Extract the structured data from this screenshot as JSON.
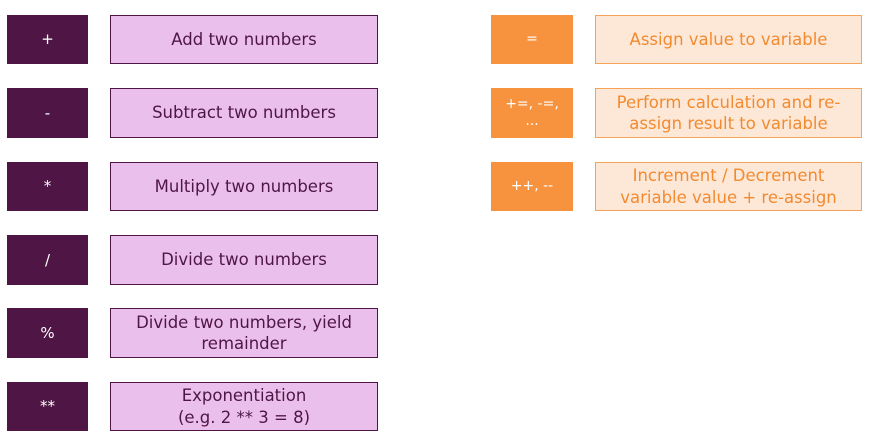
{
  "arithmetic_operators": [
    {
      "symbol": "+",
      "description": "Add two numbers"
    },
    {
      "symbol": "-",
      "description": "Subtract two numbers"
    },
    {
      "symbol": "*",
      "description": "Multiply two numbers"
    },
    {
      "symbol": "/",
      "description": "Divide two numbers"
    },
    {
      "symbol": "%",
      "description": "Divide two numbers, yield\nremainder"
    },
    {
      "symbol": "**",
      "description": "Exponentiation\n(e.g. 2 ** 3 = 8)"
    }
  ],
  "assignment_operators": [
    {
      "symbol": "=",
      "description": "Assign value to variable"
    },
    {
      "symbol": "+=, -=,\n...",
      "description": "Perform calculation and re-\nassign result to variable"
    },
    {
      "symbol": "++, --",
      "description": "Increment / Decrement\nvariable value + re-assign"
    }
  ],
  "colors": {
    "arith_operator_bg": "#4f1645",
    "arith_description_bg": "#ebbfeb",
    "assign_operator_bg": "#f7933f",
    "assign_description_bg": "#fde8d8",
    "assign_text": "#f28a2f"
  }
}
